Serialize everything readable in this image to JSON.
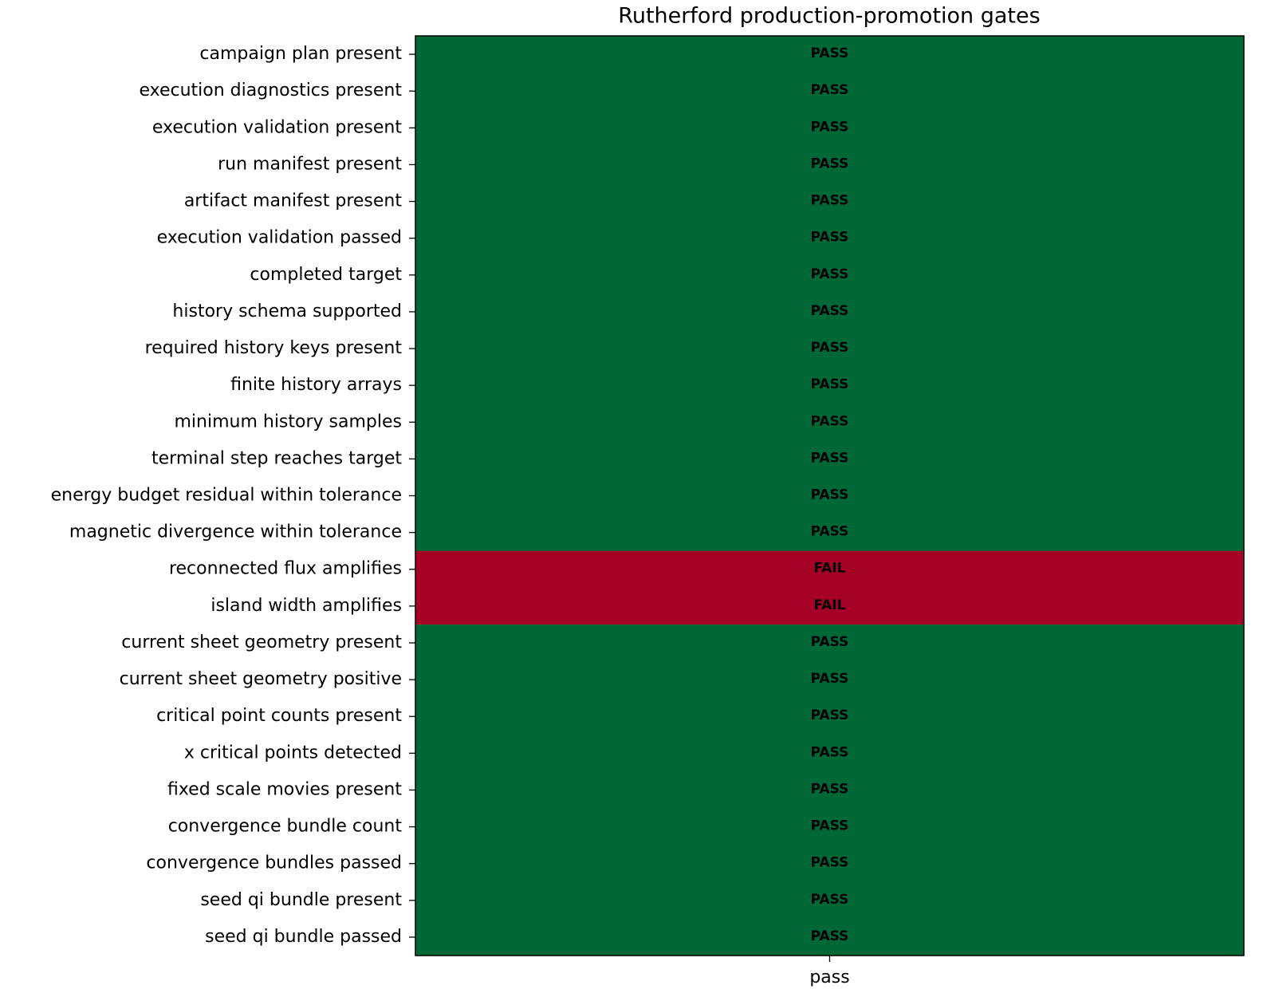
{
  "chart_data": {
    "type": "heatmap",
    "title": "Rutherford production-promotion gates",
    "categories": [
      "campaign plan present",
      "execution diagnostics present",
      "execution validation present",
      "run manifest present",
      "artifact manifest present",
      "execution validation passed",
      "completed target",
      "history schema supported",
      "required history keys present",
      "finite history arrays",
      "minimum history samples",
      "terminal step reaches target",
      "energy budget residual within tolerance",
      "magnetic divergence within tolerance",
      "reconnected flux amplifies",
      "island width amplifies",
      "current sheet geometry present",
      "current sheet geometry positive",
      "critical point counts present",
      "x critical points detected",
      "fixed scale movies present",
      "convergence bundle count",
      "convergence bundles passed",
      "seed qi bundle present",
      "seed qi bundle passed"
    ],
    "columns": [
      "pass"
    ],
    "values": [
      [
        1
      ],
      [
        1
      ],
      [
        1
      ],
      [
        1
      ],
      [
        1
      ],
      [
        1
      ],
      [
        1
      ],
      [
        1
      ],
      [
        1
      ],
      [
        1
      ],
      [
        1
      ],
      [
        1
      ],
      [
        1
      ],
      [
        1
      ],
      [
        0
      ],
      [
        0
      ],
      [
        1
      ],
      [
        1
      ],
      [
        1
      ],
      [
        1
      ],
      [
        1
      ],
      [
        1
      ],
      [
        1
      ],
      [
        1
      ],
      [
        1
      ]
    ],
    "value_labels": [
      [
        "PASS"
      ],
      [
        "PASS"
      ],
      [
        "PASS"
      ],
      [
        "PASS"
      ],
      [
        "PASS"
      ],
      [
        "PASS"
      ],
      [
        "PASS"
      ],
      [
        "PASS"
      ],
      [
        "PASS"
      ],
      [
        "PASS"
      ],
      [
        "PASS"
      ],
      [
        "PASS"
      ],
      [
        "PASS"
      ],
      [
        "PASS"
      ],
      [
        "FAIL"
      ],
      [
        "FAIL"
      ],
      [
        "PASS"
      ],
      [
        "PASS"
      ],
      [
        "PASS"
      ],
      [
        "PASS"
      ],
      [
        "PASS"
      ],
      [
        "PASS"
      ],
      [
        "PASS"
      ],
      [
        "PASS"
      ],
      [
        "PASS"
      ]
    ],
    "low_color": "#a50026",
    "high_color": "#006837"
  }
}
